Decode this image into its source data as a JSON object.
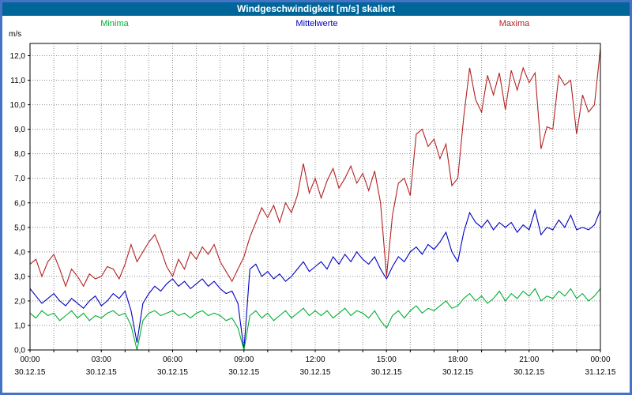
{
  "title": "Windgeschwindigkeit [m/s] skaliert",
  "y_unit": "m/s",
  "colors": {
    "border": "#4472C4",
    "titlebar": "#006699",
    "grid": "#8C8C8C",
    "axis": "#000000"
  },
  "legend": [
    {
      "label": "Minima",
      "color": "#00AF32"
    },
    {
      "label": "Mittelwerte",
      "color": "#0000C0"
    },
    {
      "label": "Maxima",
      "color": "#B22222"
    }
  ],
  "chart_data": {
    "type": "line",
    "title": "Windgeschwindigkeit [m/s] skaliert",
    "ylabel": "m/s",
    "ylim": [
      0,
      12.5
    ],
    "grid": "dotted",
    "x_step_minutes": 15,
    "x_hours_span": 24,
    "x_tick_labels": [
      "00:00",
      "03:00",
      "06:00",
      "09:00",
      "12:00",
      "15:00",
      "18:00",
      "21:00",
      "00:00"
    ],
    "x_date_labels": [
      "30.12.15",
      "30.12.15",
      "30.12.15",
      "30.12.15",
      "30.12.15",
      "30.12.15",
      "30.12.15",
      "30.12.15",
      "31.12.15"
    ],
    "y_ticks": [
      "0,0",
      "1,0",
      "2,0",
      "3,0",
      "4,0",
      "5,0",
      "6,0",
      "7,0",
      "8,0",
      "9,0",
      "10,0",
      "11,0",
      "12,0"
    ],
    "series": [
      {
        "name": "Maxima",
        "color": "#B22222",
        "values": [
          3.5,
          3.7,
          3.0,
          3.6,
          3.9,
          3.3,
          2.6,
          3.3,
          3.0,
          2.6,
          3.1,
          2.9,
          3.0,
          3.4,
          3.3,
          2.9,
          3.5,
          4.3,
          3.6,
          4.0,
          4.4,
          4.7,
          4.1,
          3.4,
          3.0,
          3.7,
          3.3,
          4.0,
          3.7,
          4.2,
          3.9,
          4.3,
          3.6,
          3.2,
          2.8,
          3.3,
          3.8,
          4.6,
          5.2,
          5.8,
          5.4,
          5.9,
          5.2,
          6.0,
          5.6,
          6.3,
          7.6,
          6.4,
          7.0,
          6.2,
          6.9,
          7.4,
          6.6,
          7.0,
          7.5,
          6.8,
          7.2,
          6.5,
          7.3,
          6.0,
          3.0,
          5.5,
          6.8,
          7.0,
          6.3,
          8.8,
          9.0,
          8.3,
          8.6,
          7.8,
          8.4,
          6.7,
          7.0,
          9.5,
          11.5,
          10.2,
          9.7,
          11.2,
          10.4,
          11.3,
          9.8,
          11.4,
          10.6,
          11.5,
          10.9,
          11.3,
          8.2,
          9.1,
          9.0,
          11.2,
          10.8,
          11.0,
          8.8,
          10.4,
          9.7,
          10.0,
          12.3
        ]
      },
      {
        "name": "Mittelwerte",
        "color": "#0000C0",
        "values": [
          2.5,
          2.2,
          1.9,
          2.1,
          2.3,
          2.0,
          1.8,
          2.1,
          1.9,
          1.7,
          2.0,
          2.2,
          1.8,
          2.0,
          2.3,
          2.1,
          2.4,
          1.6,
          0.3,
          1.9,
          2.3,
          2.6,
          2.4,
          2.7,
          2.9,
          2.6,
          2.8,
          2.5,
          2.7,
          2.9,
          2.6,
          2.8,
          2.5,
          2.3,
          2.4,
          1.9,
          0.0,
          3.3,
          3.5,
          3.0,
          3.2,
          2.9,
          3.1,
          2.8,
          3.0,
          3.3,
          3.6,
          3.2,
          3.4,
          3.6,
          3.3,
          3.8,
          3.5,
          3.9,
          3.6,
          4.0,
          3.7,
          3.5,
          3.8,
          3.3,
          2.9,
          3.4,
          3.8,
          3.6,
          4.0,
          4.2,
          3.9,
          4.3,
          4.1,
          4.4,
          4.8,
          4.0,
          3.6,
          4.8,
          5.6,
          5.2,
          5.0,
          5.3,
          4.9,
          5.2,
          5.0,
          5.2,
          4.8,
          5.1,
          4.9,
          5.7,
          4.7,
          5.0,
          4.9,
          5.3,
          5.0,
          5.5,
          4.9,
          5.0,
          4.9,
          5.1,
          5.7
        ]
      },
      {
        "name": "Minima",
        "color": "#00AF32",
        "values": [
          1.5,
          1.3,
          1.6,
          1.4,
          1.5,
          1.2,
          1.4,
          1.6,
          1.3,
          1.5,
          1.2,
          1.4,
          1.3,
          1.5,
          1.6,
          1.4,
          1.5,
          1.0,
          0.0,
          1.2,
          1.5,
          1.6,
          1.4,
          1.5,
          1.6,
          1.4,
          1.5,
          1.3,
          1.5,
          1.6,
          1.4,
          1.5,
          1.4,
          1.2,
          1.3,
          0.9,
          0.0,
          1.4,
          1.6,
          1.3,
          1.5,
          1.2,
          1.4,
          1.6,
          1.3,
          1.5,
          1.7,
          1.4,
          1.6,
          1.4,
          1.6,
          1.3,
          1.5,
          1.7,
          1.4,
          1.6,
          1.5,
          1.3,
          1.6,
          1.2,
          0.9,
          1.4,
          1.6,
          1.3,
          1.6,
          1.8,
          1.5,
          1.7,
          1.6,
          1.8,
          2.0,
          1.7,
          1.8,
          2.1,
          2.3,
          2.0,
          2.2,
          1.9,
          2.1,
          2.4,
          2.0,
          2.3,
          2.1,
          2.4,
          2.2,
          2.5,
          2.0,
          2.2,
          2.1,
          2.4,
          2.2,
          2.5,
          2.1,
          2.3,
          2.0,
          2.2,
          2.5
        ]
      }
    ]
  }
}
